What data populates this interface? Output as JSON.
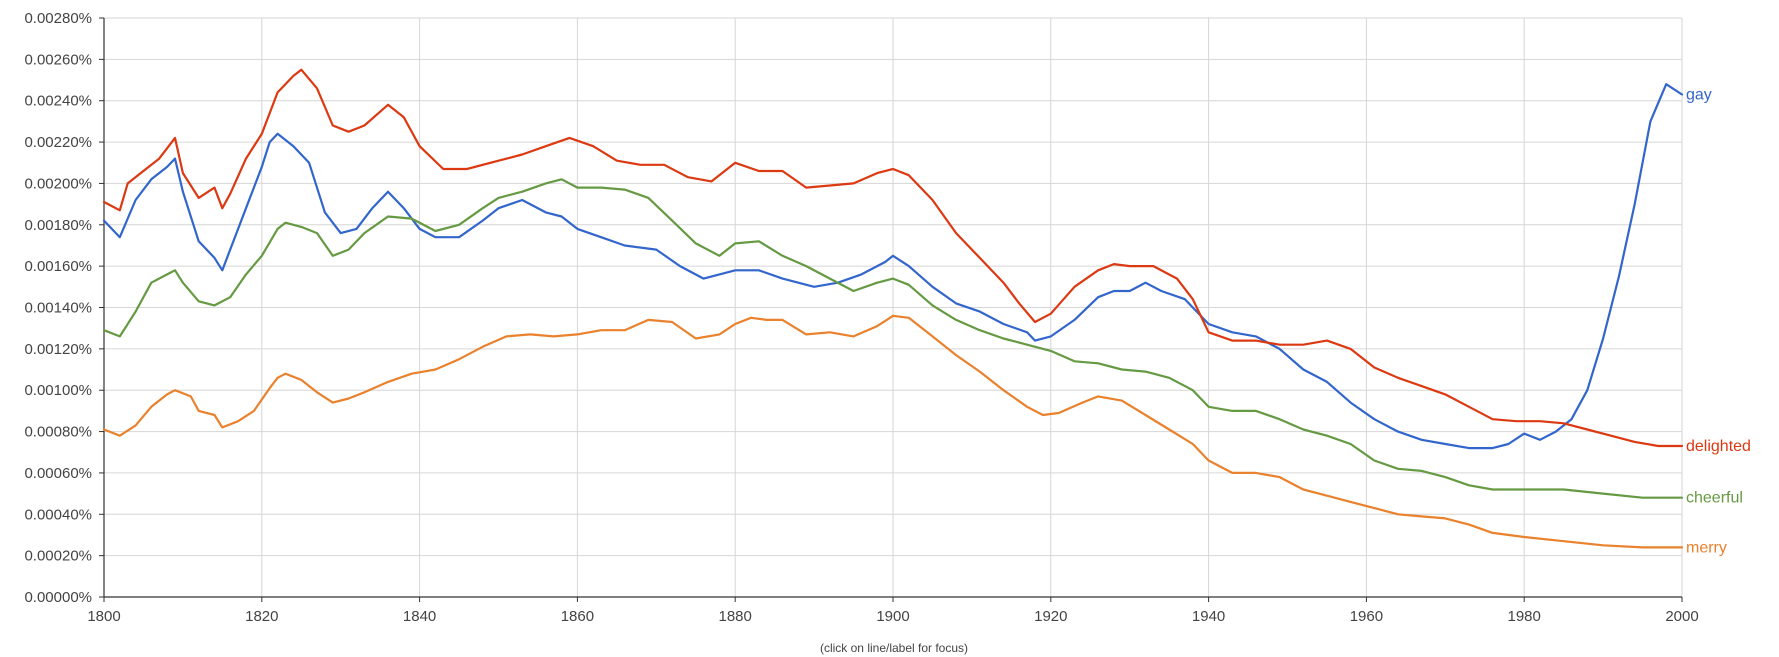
{
  "chart_data": {
    "type": "line",
    "title": "",
    "xlabel": "",
    "ylabel": "",
    "xlim": [
      1800,
      2000
    ],
    "ylim": [
      0,
      0.0028
    ],
    "grid": true,
    "x_ticks": [
      1800,
      1820,
      1840,
      1860,
      1880,
      1900,
      1920,
      1940,
      1960,
      1980,
      2000
    ],
    "y_ticks": [
      0,
      0.0002,
      0.0004,
      0.0006,
      0.0008,
      0.001,
      0.0012,
      0.0014,
      0.0016,
      0.0018,
      0.002,
      0.0022,
      0.0024,
      0.0026,
      0.0028
    ],
    "x_tick_labels": [
      "1800",
      "1820",
      "1840",
      "1860",
      "1880",
      "1900",
      "1920",
      "1940",
      "1960",
      "1980",
      "2000"
    ],
    "y_tick_labels": [
      "0.00000%",
      "0.00020%",
      "0.00040%",
      "0.00060%",
      "0.00080%",
      "0.00100%",
      "0.00120%",
      "0.00140%",
      "0.00160%",
      "0.00180%",
      "0.00200%",
      "0.00220%",
      "0.00240%",
      "0.00260%",
      "0.00280%"
    ],
    "footnote": "(click on line/label for focus)",
    "series": [
      {
        "name": "gay",
        "color": "#3366cc",
        "x": [
          1800,
          1802,
          1804,
          1806,
          1808,
          1809,
          1810,
          1812,
          1814,
          1815,
          1816,
          1818,
          1820,
          1821,
          1822,
          1824,
          1826,
          1828,
          1830,
          1832,
          1834,
          1836,
          1838,
          1840,
          1842,
          1845,
          1848,
          1850,
          1853,
          1856,
          1858,
          1860,
          1863,
          1866,
          1870,
          1873,
          1876,
          1880,
          1883,
          1886,
          1890,
          1893,
          1896,
          1899,
          1900,
          1902,
          1905,
          1908,
          1911,
          1914,
          1917,
          1918,
          1920,
          1923,
          1926,
          1928,
          1930,
          1932,
          1934,
          1937,
          1940,
          1943,
          1946,
          1949,
          1952,
          1955,
          1958,
          1961,
          1964,
          1967,
          1970,
          1973,
          1976,
          1978,
          1980,
          1982,
          1984,
          1986,
          1988,
          1990,
          1992,
          1994,
          1996,
          1998,
          2000
        ],
        "values": [
          0.00182,
          0.00174,
          0.00192,
          0.00202,
          0.00208,
          0.00212,
          0.00196,
          0.00172,
          0.00164,
          0.00158,
          0.00168,
          0.00188,
          0.00208,
          0.0022,
          0.00224,
          0.00218,
          0.0021,
          0.00186,
          0.00176,
          0.00178,
          0.00188,
          0.00196,
          0.00188,
          0.00178,
          0.00174,
          0.00174,
          0.00182,
          0.00188,
          0.00192,
          0.00186,
          0.00184,
          0.00178,
          0.00174,
          0.0017,
          0.00168,
          0.0016,
          0.00154,
          0.00158,
          0.00158,
          0.00154,
          0.0015,
          0.00152,
          0.00156,
          0.00162,
          0.00165,
          0.0016,
          0.0015,
          0.00142,
          0.00138,
          0.00132,
          0.00128,
          0.00124,
          0.00126,
          0.00134,
          0.00145,
          0.00148,
          0.00148,
          0.00152,
          0.00148,
          0.00144,
          0.00132,
          0.00128,
          0.00126,
          0.0012,
          0.0011,
          0.00104,
          0.00094,
          0.00086,
          0.0008,
          0.00076,
          0.00074,
          0.00072,
          0.00072,
          0.00074,
          0.00079,
          0.00076,
          0.0008,
          0.00086,
          0.001,
          0.00125,
          0.00155,
          0.0019,
          0.0023,
          0.00248,
          0.00243
        ]
      },
      {
        "name": "delighted",
        "color": "#dc3912",
        "x": [
          1800,
          1802,
          1803,
          1805,
          1807,
          1809,
          1810,
          1812,
          1814,
          1815,
          1816,
          1818,
          1820,
          1822,
          1824,
          1825,
          1827,
          1829,
          1831,
          1833,
          1836,
          1838,
          1840,
          1843,
          1846,
          1850,
          1853,
          1856,
          1859,
          1862,
          1865,
          1868,
          1871,
          1874,
          1877,
          1880,
          1883,
          1886,
          1889,
          1892,
          1895,
          1898,
          1900,
          1902,
          1905,
          1908,
          1911,
          1914,
          1916,
          1918,
          1920,
          1923,
          1926,
          1928,
          1930,
          1933,
          1936,
          1938,
          1940,
          1943,
          1946,
          1949,
          1952,
          1955,
          1958,
          1961,
          1964,
          1967,
          1970,
          1973,
          1976,
          1979,
          1982,
          1985,
          1988,
          1991,
          1994,
          1997,
          2000
        ],
        "values": [
          0.00191,
          0.00187,
          0.002,
          0.00206,
          0.00212,
          0.00222,
          0.00205,
          0.00193,
          0.00198,
          0.00188,
          0.00195,
          0.00212,
          0.00224,
          0.00244,
          0.00252,
          0.00255,
          0.00246,
          0.00228,
          0.00225,
          0.00228,
          0.00238,
          0.00232,
          0.00218,
          0.00207,
          0.00207,
          0.00211,
          0.00214,
          0.00218,
          0.00222,
          0.00218,
          0.00211,
          0.00209,
          0.00209,
          0.00203,
          0.00201,
          0.0021,
          0.00206,
          0.00206,
          0.00198,
          0.00199,
          0.002,
          0.00205,
          0.00207,
          0.00204,
          0.00192,
          0.00176,
          0.00164,
          0.00152,
          0.00142,
          0.00133,
          0.00137,
          0.0015,
          0.00158,
          0.00161,
          0.0016,
          0.0016,
          0.00154,
          0.00144,
          0.00128,
          0.00124,
          0.00124,
          0.00122,
          0.00122,
          0.00124,
          0.0012,
          0.00111,
          0.00106,
          0.00102,
          0.00098,
          0.00092,
          0.00086,
          0.00085,
          0.00085,
          0.00084,
          0.00081,
          0.00078,
          0.00075,
          0.00073,
          0.00073
        ]
      },
      {
        "name": "cheerful",
        "color": "#659a43",
        "x": [
          1800,
          1802,
          1804,
          1806,
          1808,
          1809,
          1810,
          1812,
          1814,
          1816,
          1818,
          1820,
          1822,
          1823,
          1825,
          1827,
          1829,
          1831,
          1833,
          1836,
          1839,
          1842,
          1845,
          1848,
          1850,
          1853,
          1856,
          1858,
          1860,
          1863,
          1866,
          1869,
          1872,
          1875,
          1878,
          1880,
          1883,
          1886,
          1889,
          1892,
          1895,
          1898,
          1900,
          1902,
          1905,
          1908,
          1911,
          1914,
          1917,
          1920,
          1923,
          1926,
          1929,
          1932,
          1935,
          1938,
          1940,
          1943,
          1946,
          1949,
          1952,
          1955,
          1958,
          1961,
          1964,
          1967,
          1970,
          1973,
          1976,
          1980,
          1985,
          1990,
          1995,
          2000
        ],
        "values": [
          0.00129,
          0.00126,
          0.00138,
          0.00152,
          0.00156,
          0.00158,
          0.00152,
          0.00143,
          0.00141,
          0.00145,
          0.00156,
          0.00165,
          0.00178,
          0.00181,
          0.00179,
          0.00176,
          0.00165,
          0.00168,
          0.00176,
          0.00184,
          0.00183,
          0.00177,
          0.0018,
          0.00188,
          0.00193,
          0.00196,
          0.002,
          0.00202,
          0.00198,
          0.00198,
          0.00197,
          0.00193,
          0.00182,
          0.00171,
          0.00165,
          0.00171,
          0.00172,
          0.00165,
          0.0016,
          0.00154,
          0.00148,
          0.00152,
          0.00154,
          0.00151,
          0.00141,
          0.00134,
          0.00129,
          0.00125,
          0.00122,
          0.00119,
          0.00114,
          0.00113,
          0.0011,
          0.00109,
          0.00106,
          0.001,
          0.00092,
          0.0009,
          0.0009,
          0.00086,
          0.00081,
          0.00078,
          0.00074,
          0.00066,
          0.00062,
          0.00061,
          0.00058,
          0.00054,
          0.00052,
          0.00052,
          0.00052,
          0.0005,
          0.00048,
          0.00048
        ]
      },
      {
        "name": "merry",
        "color": "#e9812d",
        "x": [
          1800,
          1802,
          1804,
          1806,
          1808,
          1809,
          1811,
          1812,
          1814,
          1815,
          1817,
          1819,
          1821,
          1822,
          1823,
          1825,
          1827,
          1829,
          1831,
          1833,
          1836,
          1839,
          1842,
          1845,
          1848,
          1851,
          1854,
          1857,
          1860,
          1863,
          1866,
          1869,
          1872,
          1875,
          1878,
          1880,
          1882,
          1884,
          1886,
          1889,
          1892,
          1895,
          1898,
          1900,
          1902,
          1905,
          1908,
          1911,
          1914,
          1917,
          1919,
          1921,
          1924,
          1926,
          1929,
          1932,
          1935,
          1938,
          1940,
          1943,
          1946,
          1949,
          1952,
          1955,
          1958,
          1961,
          1964,
          1967,
          1970,
          1973,
          1976,
          1980,
          1985,
          1990,
          1995,
          2000
        ],
        "values": [
          0.00081,
          0.00078,
          0.00083,
          0.00092,
          0.00098,
          0.001,
          0.00097,
          0.0009,
          0.00088,
          0.00082,
          0.00085,
          0.0009,
          0.00101,
          0.00106,
          0.00108,
          0.00105,
          0.00099,
          0.00094,
          0.00096,
          0.00099,
          0.00104,
          0.00108,
          0.0011,
          0.00115,
          0.00121,
          0.00126,
          0.00127,
          0.00126,
          0.00127,
          0.00129,
          0.00129,
          0.00134,
          0.00133,
          0.00125,
          0.00127,
          0.00132,
          0.00135,
          0.00134,
          0.00134,
          0.00127,
          0.00128,
          0.00126,
          0.00131,
          0.00136,
          0.00135,
          0.00126,
          0.00117,
          0.00109,
          0.001,
          0.00092,
          0.00088,
          0.00089,
          0.00094,
          0.00097,
          0.00095,
          0.00088,
          0.00081,
          0.00074,
          0.00066,
          0.0006,
          0.0006,
          0.00058,
          0.00052,
          0.00049,
          0.00046,
          0.00043,
          0.0004,
          0.00039,
          0.00038,
          0.00035,
          0.00031,
          0.00029,
          0.00027,
          0.00025,
          0.00024,
          0.00024
        ]
      }
    ]
  }
}
